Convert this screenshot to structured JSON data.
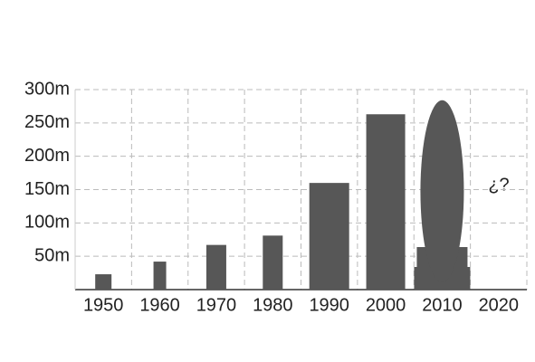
{
  "chart_data": {
    "type": "bar",
    "categories": [
      "1950",
      "1960",
      "1970",
      "1980",
      "1990",
      "2000",
      "2010",
      "2020"
    ],
    "values": [
      23,
      42,
      67,
      81,
      160,
      263,
      284,
      null
    ],
    "color": "#575757",
    "ylim": [
      0,
      300
    ],
    "yticks": [
      {
        "value": 50,
        "label": "50m"
      },
      {
        "value": 100,
        "label": "100m"
      },
      {
        "value": 150,
        "label": "150m"
      },
      {
        "value": 200,
        "label": "200m"
      },
      {
        "value": 250,
        "label": "250m"
      },
      {
        "value": 300,
        "label": "300m"
      }
    ],
    "grid": true,
    "annotation": "¿?"
  }
}
